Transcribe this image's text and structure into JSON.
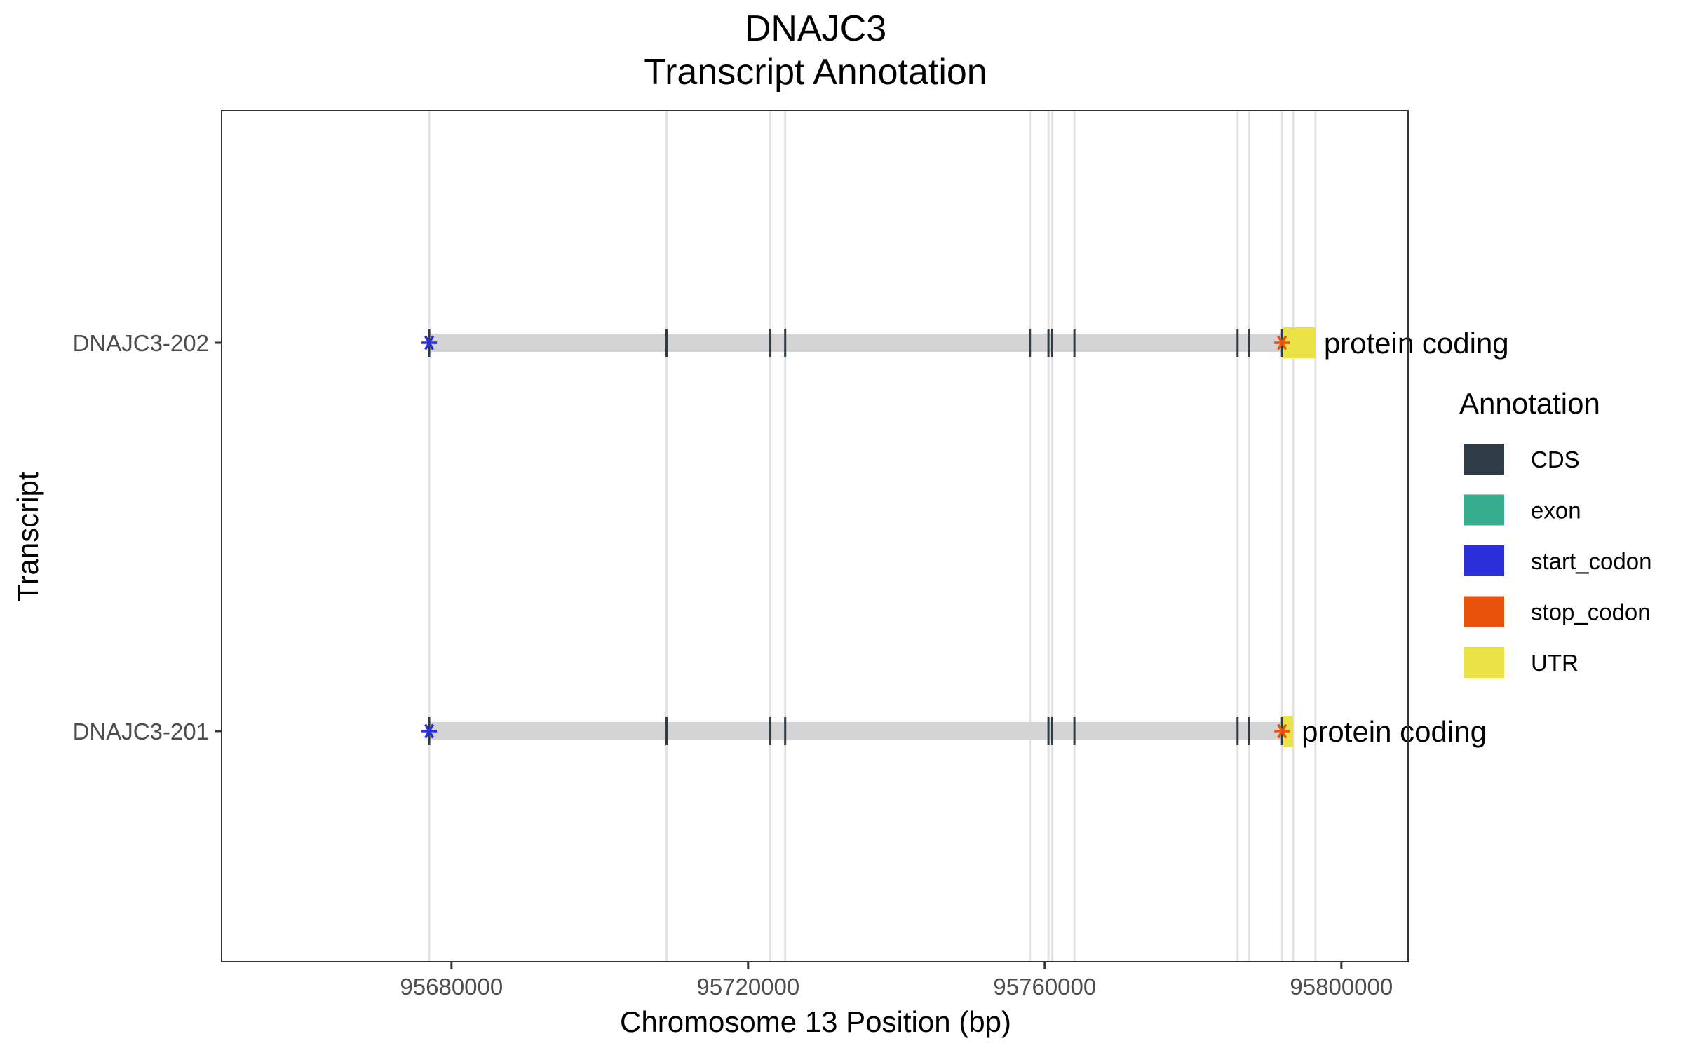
{
  "chart_data": {
    "type": "gene-structure",
    "title_lines": [
      "DNAJC3",
      "Transcript Annotation"
    ],
    "xlabel": "Chromosome 13 Position (bp)",
    "ylabel": "Transcript",
    "xlim": [
      95649000,
      95809000
    ],
    "x_ticks": [
      95680000,
      95720000,
      95760000,
      95800000
    ],
    "x_tick_labels": [
      "95680000",
      "95720000",
      "95760000",
      "95800000"
    ],
    "grid": {
      "major": false,
      "vertical_reference_lines": true
    },
    "reference_lines_x": [
      95677000,
      95709000,
      95723000,
      95725000,
      95758000,
      95760500,
      95761000,
      95764000,
      95786000,
      95787500,
      95792000,
      95793500,
      95796500
    ],
    "legend": {
      "title": "Annotation",
      "position": "right",
      "items": [
        {
          "label": "CDS",
          "color": "#2f3b45"
        },
        {
          "label": "exon",
          "color": "#35ad8e"
        },
        {
          "label": "start_codon",
          "color": "#2b2fd8"
        },
        {
          "label": "stop_codon",
          "color": "#e8520a"
        },
        {
          "label": "UTR",
          "color": "#ebe346"
        }
      ]
    },
    "colors": {
      "intron": "#d4d4d4",
      "cds": "#2f3b45",
      "utr": "#ebe346",
      "start_codon": "#2b2fd8",
      "stop_codon": "#e8520a"
    },
    "transcripts": [
      {
        "name": "DNAJC3-202",
        "biotype": "protein coding",
        "start": 95677000,
        "end": 95796500,
        "cds": [
          95677000,
          95709000,
          95723000,
          95725000,
          95758000,
          95760500,
          95761000,
          95764000,
          95786000,
          95787500,
          95792000
        ],
        "utr": [
          [
            95792000,
            95796500
          ]
        ],
        "start_codon": 95677000,
        "stop_codon": 95792000
      },
      {
        "name": "DNAJC3-201",
        "biotype": "protein coding",
        "start": 95677000,
        "end": 95793500,
        "cds": [
          95677000,
          95709000,
          95723000,
          95725000,
          95760500,
          95761000,
          95764000,
          95786000,
          95787500,
          95792000
        ],
        "utr": [
          [
            95792000,
            95793500
          ]
        ],
        "start_codon": 95677000,
        "stop_codon": 95792000
      }
    ]
  }
}
